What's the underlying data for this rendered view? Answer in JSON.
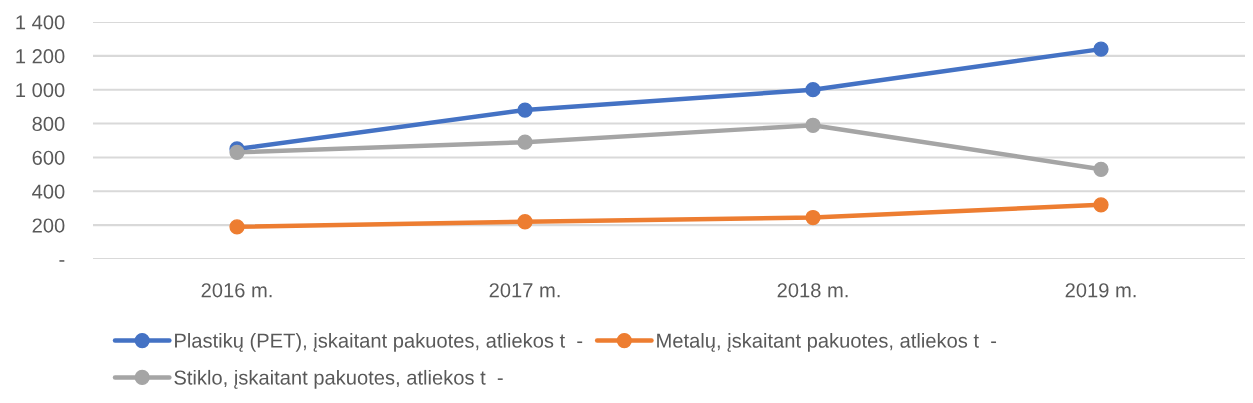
{
  "chart_data": {
    "type": "line",
    "categories": [
      "2016 m.",
      "2017 m.",
      "2018 m.",
      "2019 m."
    ],
    "series": [
      {
        "name": "Plastikų (PET), įskaitant pakuotes, atliekos t  -",
        "color": "#4472c4",
        "values": [
          650,
          880,
          1000,
          1240
        ]
      },
      {
        "name": "Metalų, įskaitant pakuotes, atliekos t  -",
        "color": "#ed7d31",
        "values": [
          190,
          220,
          245,
          320
        ]
      },
      {
        "name": "Stiklo, įskaitant pakuotes, atliekos t  -",
        "color": "#a5a5a5",
        "values": [
          630,
          690,
          790,
          530
        ]
      }
    ],
    "ylim": [
      0,
      1400
    ],
    "yticks": [
      {
        "value": 0,
        "label": "-"
      },
      200,
      400,
      600,
      800,
      {
        "value": 1000,
        "label": "1 000"
      },
      {
        "value": 1200,
        "label": "1 200"
      },
      {
        "value": 1400,
        "label": "1 400"
      }
    ],
    "grid": "y",
    "legend": "bottom",
    "marker": "circle",
    "line_style": "solid"
  }
}
